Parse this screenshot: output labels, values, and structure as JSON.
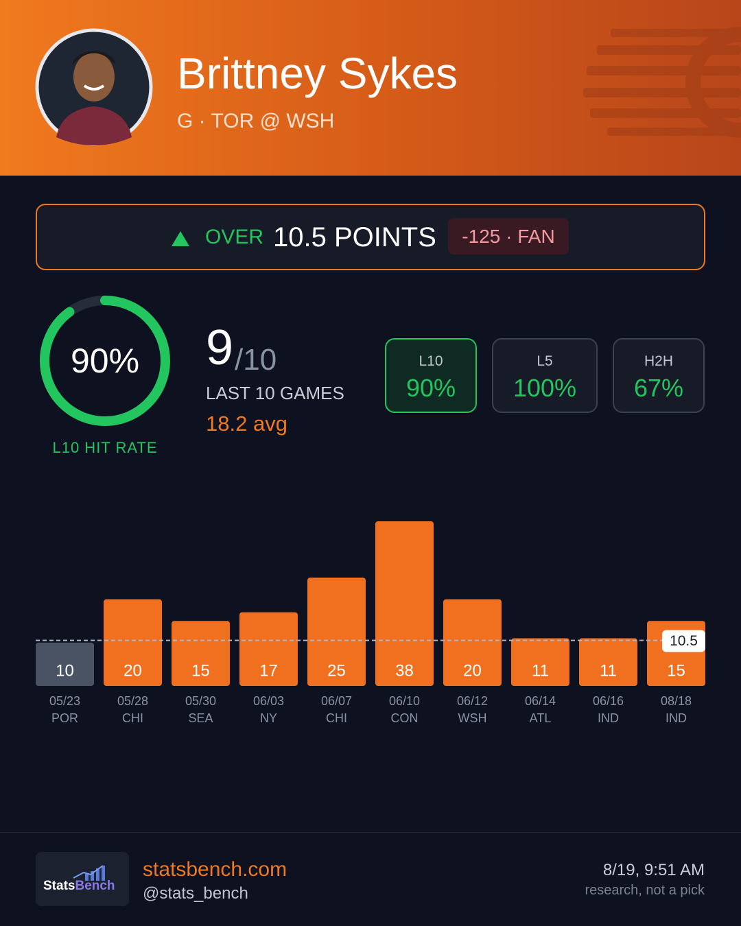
{
  "header": {
    "name": "Brittney Sykes",
    "subtitle": "G · TOR @ WSH"
  },
  "prop": {
    "side": "OVER",
    "line": "10.5 POINTS",
    "odds": "-125 · FAN"
  },
  "hit_rate": {
    "value": 90,
    "label": "90%",
    "caption": "L10 HIT RATE",
    "color": "#22c55e"
  },
  "record": {
    "hits": "9",
    "total": "/10",
    "caption": "LAST 10 GAMES",
    "average": "18.2 avg"
  },
  "splits": [
    {
      "label": "L10",
      "value": "90%"
    },
    {
      "label": "L5",
      "value": "100%"
    },
    {
      "label": "H2H",
      "value": "67%"
    }
  ],
  "chart_data": {
    "type": "bar",
    "categories": [
      "05/23",
      "05/28",
      "05/30",
      "06/03",
      "06/07",
      "06/10",
      "06/12",
      "06/14",
      "06/16",
      "08/18"
    ],
    "opponents": [
      "POR",
      "CHI",
      "SEA",
      "NY",
      "CHI",
      "CON",
      "WSH",
      "ATL",
      "IND",
      "IND"
    ],
    "values": [
      10,
      20,
      15,
      17,
      25,
      38,
      20,
      11,
      11,
      15
    ],
    "color": "#f07020",
    "miss_color": "#4a5363",
    "threshold": 10.5
  },
  "footer": {
    "logo": [
      "Stats",
      "Bench"
    ],
    "site": "statsbench.com",
    "handle": "@stats_bench",
    "timestamp": "8/19, 9:51 AM",
    "note": "research, not a pick"
  }
}
